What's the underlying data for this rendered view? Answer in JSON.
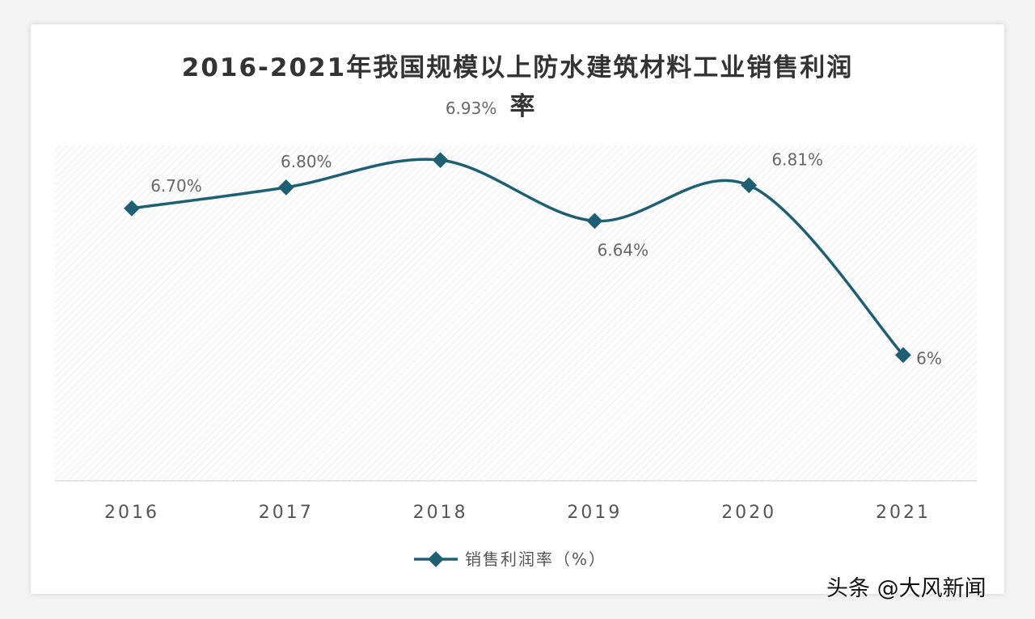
{
  "chart_data": {
    "type": "line",
    "title": "2016-2021年我国规模以上防水建筑材料工业销售利润率",
    "title_line1": "2016-2021年我国规模以上防水建筑材料工业销售利润",
    "title_line2": "率",
    "categories": [
      "2016",
      "2017",
      "2018",
      "2019",
      "2020",
      "2021"
    ],
    "series": [
      {
        "name": "销售利润率（%）",
        "values": [
          6.7,
          6.8,
          6.93,
          6.64,
          6.81,
          6.0
        ],
        "color": "#1f5f73"
      }
    ],
    "data_labels": [
      "6.70%",
      "6.80%",
      "6.93%",
      "6.64%",
      "6.81%",
      "6%"
    ],
    "ylim": [
      5.4,
      7.0
    ],
    "grid": false,
    "plot_background": "hatched",
    "legend": "bottom-center",
    "smooth": true
  },
  "watermark": "头条 @大风新闻"
}
